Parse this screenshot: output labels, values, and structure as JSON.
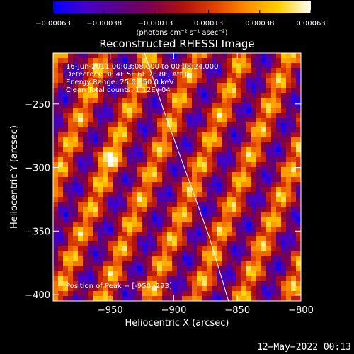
{
  "chart_data": {
    "type": "heatmap",
    "title": "Reconstructed RHESSI Image",
    "xlabel": "Heliocentric X (arcsec)",
    "ylabel": "Heliocentric Y (arcsec)",
    "xlim": [
      -995,
      -800
    ],
    "ylim": [
      -405,
      -210
    ],
    "x_ticks": [
      {
        "value": -950,
        "label": "−950"
      },
      {
        "value": -900,
        "label": "−900"
      },
      {
        "value": -850,
        "label": "−850"
      },
      {
        "value": -800,
        "label": "−800"
      }
    ],
    "y_ticks": [
      {
        "value": -250,
        "label": "−250"
      },
      {
        "value": -300,
        "label": "−300"
      },
      {
        "value": -350,
        "label": "−350"
      },
      {
        "value": -400,
        "label": "−400"
      }
    ],
    "colorbar": {
      "min": -0.00063,
      "max": 0.00063,
      "ticks": [
        {
          "value": -0.00063,
          "label": "−0.00063"
        },
        {
          "value": -0.00038,
          "label": "−0.00038"
        },
        {
          "value": -0.00013,
          "label": "−0.00013"
        },
        {
          "value": 0.00013,
          "label": "0.00013"
        },
        {
          "value": 0.00038,
          "label": "0.00038"
        },
        {
          "value": 0.00063,
          "label": "0.00063"
        }
      ],
      "unit_label": "(photons cm⁻² s⁻¹ asec⁻²)",
      "colormap": [
        "#0000ff",
        "#4400cc",
        "#5a0088",
        "#7a0050",
        "#b01010",
        "#e04000",
        "#ff8c00",
        "#ffd000",
        "#ffffff"
      ]
    },
    "annotations": [
      "16-Jun-2011 00:03:08.000 to 00:08:24.000",
      "Detectors: 3F 4F 5F 6F 7F 8F, Att 0",
      "Energy Range: 25.0 - 50.0 keV",
      "Clean    Total counts: 1.12E+04"
    ],
    "position_label": "Position of Peak = [-950,-293]",
    "peak": {
      "x": -950,
      "y": -293
    },
    "limb": [
      [
        -923,
        -210
      ],
      [
        -908,
        -255
      ],
      [
        -890,
        -305
      ],
      [
        -872,
        -355
      ],
      [
        -857,
        -405
      ]
    ],
    "limb_color": "#ffffff",
    "grid": false,
    "legend": "none"
  },
  "footer": {
    "date": "12−May−2022 00:13"
  }
}
